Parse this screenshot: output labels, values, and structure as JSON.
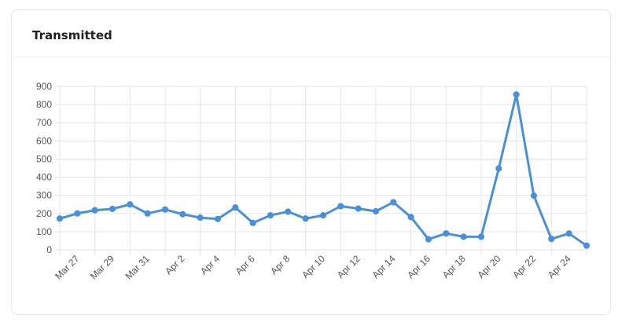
{
  "card": {
    "title": "Transmitted"
  },
  "colors": {
    "line": "#4a90d9",
    "grid": "#e5e5e5",
    "tick_text": "#555555"
  },
  "chart_data": {
    "type": "line",
    "title": "Transmitted",
    "xlabel": "",
    "ylabel": "",
    "ylim": [
      0,
      900
    ],
    "yticks": [
      0,
      100,
      200,
      300,
      400,
      500,
      600,
      700,
      800,
      900
    ],
    "grid": true,
    "x": [
      "Mar 26",
      "Mar 27",
      "Mar 28",
      "Mar 29",
      "Mar 30",
      "Mar 31",
      "Apr 1",
      "Apr 2",
      "Apr 3",
      "Apr 4",
      "Apr 5",
      "Apr 6",
      "Apr 7",
      "Apr 8",
      "Apr 9",
      "Apr 10",
      "Apr 11",
      "Apr 12",
      "Apr 13",
      "Apr 14",
      "Apr 15",
      "Apr 16",
      "Apr 17",
      "Apr 18",
      "Apr 19",
      "Apr 20",
      "Apr 21",
      "Apr 22",
      "Apr 23",
      "Apr 24",
      "Apr 25"
    ],
    "xtick_labels": [
      "Mar 27",
      "Mar 29",
      "Mar 31",
      "Apr 2",
      "Apr 4",
      "Apr 6",
      "Apr 8",
      "Apr 10",
      "Apr 12",
      "Apr 14",
      "Apr 16",
      "Apr 18",
      "Apr 20",
      "Apr 22",
      "Apr 24"
    ],
    "series": [
      {
        "values": [
          172,
          200,
          218,
          225,
          250,
          200,
          222,
          196,
          177,
          170,
          233,
          148,
          190,
          210,
          172,
          190,
          240,
          227,
          212,
          262,
          180,
          58,
          90,
          72,
          72,
          448,
          855,
          298,
          60,
          90,
          23
        ]
      }
    ]
  }
}
